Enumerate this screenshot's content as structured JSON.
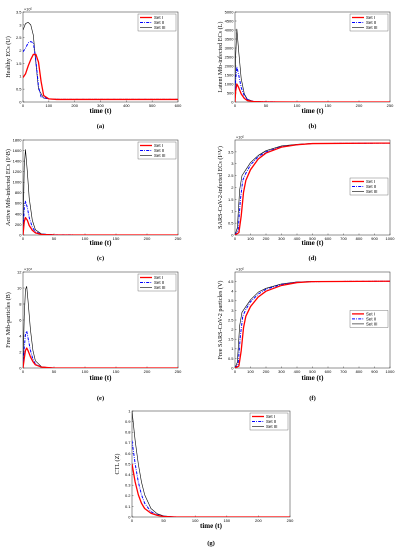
{
  "figure": {
    "legend_entries": [
      "Set I",
      "Set II",
      "Set III"
    ],
    "series_styles": [
      {
        "name": "Set I",
        "color": "#ff0000",
        "dash": "solid"
      },
      {
        "name": "Set II",
        "color": "#0000ff",
        "dash": "dashdot"
      },
      {
        "name": "Set III",
        "color": "#000000",
        "dash": "solid"
      }
    ]
  },
  "chart_data": [
    {
      "type": "line",
      "panel_label": "(a)",
      "ylabel": "Healthy ECs (U)",
      "xlabel": "time (t)",
      "xlim": [
        0,
        600
      ],
      "ylim": [
        0,
        3.5
      ],
      "y_multiplier": "×10⁵",
      "xticks": [
        0,
        100,
        200,
        300,
        400,
        500,
        600
      ],
      "xtick_labels": [
        "0",
        "100",
        "200",
        "300",
        "400",
        "500",
        "600"
      ],
      "yticks": [
        0,
        0.5,
        1,
        1.5,
        2,
        2.5,
        3,
        3.5
      ],
      "ytick_labels": [
        "0",
        "0.5",
        "1",
        "1.5",
        "2",
        "2.5",
        "3",
        "3.5"
      ],
      "legend_position": "top-right",
      "series": [
        {
          "name": "Set I",
          "x": [
            0,
            10,
            20,
            30,
            40,
            50,
            60,
            70,
            80,
            100,
            130,
            200,
            300,
            400,
            500,
            600
          ],
          "y": [
            0.95,
            1.1,
            1.4,
            1.65,
            1.85,
            1.85,
            1.55,
            0.8,
            0.25,
            0.12,
            0.1,
            0.1,
            0.1,
            0.1,
            0.1,
            0.1
          ]
        },
        {
          "name": "Set II",
          "x": [
            0,
            10,
            20,
            30,
            40,
            50,
            60,
            70,
            100,
            150,
            200,
            300,
            400,
            500,
            600
          ],
          "y": [
            1.95,
            2.1,
            2.3,
            2.35,
            2.3,
            1.6,
            0.6,
            0.2,
            0.12,
            0.1,
            0.1,
            0.1,
            0.1,
            0.1,
            0.1
          ]
        },
        {
          "name": "Set III",
          "x": [
            0,
            10,
            20,
            30,
            40,
            50,
            60,
            80,
            100,
            150,
            200,
            300,
            400,
            500,
            600
          ],
          "y": [
            2.8,
            3.05,
            3.1,
            3.0,
            2.6,
            1.5,
            0.5,
            0.15,
            0.12,
            0.1,
            0.1,
            0.1,
            0.1,
            0.1,
            0.1
          ]
        }
      ]
    },
    {
      "type": "line",
      "panel_label": "(b)",
      "ylabel": "Latent Mtb-infected ECs (L)",
      "xlabel": "time (t)",
      "xlim": [
        0,
        250
      ],
      "ylim": [
        0,
        5000
      ],
      "xticks": [
        0,
        50,
        100,
        150,
        200,
        250
      ],
      "xtick_labels": [
        "0",
        "50",
        "100",
        "150",
        "200",
        "250"
      ],
      "yticks": [
        0,
        500,
        1000,
        1500,
        2000,
        2500,
        3000,
        3500,
        4000,
        4500,
        5000
      ],
      "ytick_labels": [
        "0",
        "500",
        "1000",
        "1500",
        "2000",
        "2500",
        "3000",
        "3500",
        "4000",
        "4500",
        "5000"
      ],
      "legend_position": "top-right",
      "series": [
        {
          "name": "Set I",
          "x": [
            0,
            1,
            3,
            6,
            10,
            15,
            20,
            30,
            50,
            100,
            250
          ],
          "y": [
            0,
            600,
            1000,
            800,
            450,
            200,
            80,
            20,
            5,
            0,
            0
          ]
        },
        {
          "name": "Set II",
          "x": [
            0,
            1,
            3,
            6,
            10,
            15,
            20,
            30,
            50,
            100,
            250
          ],
          "y": [
            0,
            1200,
            1950,
            1500,
            800,
            350,
            130,
            30,
            5,
            0,
            0
          ]
        },
        {
          "name": "Set III",
          "x": [
            0,
            1,
            3,
            6,
            10,
            15,
            20,
            30,
            50,
            100,
            250
          ],
          "y": [
            0,
            2500,
            4050,
            2800,
            1300,
            450,
            150,
            30,
            5,
            0,
            0
          ]
        }
      ]
    },
    {
      "type": "line",
      "panel_label": "(c)",
      "ylabel": "Active Mtb-infected ECs (I^B)",
      "xlabel": "time (t)",
      "xlim": [
        0,
        250
      ],
      "ylim": [
        0,
        1800
      ],
      "xticks": [
        0,
        50,
        100,
        150,
        200,
        250
      ],
      "xtick_labels": [
        "0",
        "50",
        "100",
        "150",
        "200",
        "250"
      ],
      "yticks": [
        0,
        200,
        400,
        600,
        800,
        1000,
        1200,
        1400,
        1600,
        1800
      ],
      "ytick_labels": [
        "0",
        "200",
        "400",
        "600",
        "800",
        "1000",
        "1200",
        "1400",
        "1600",
        "1800"
      ],
      "legend_position": "top-right",
      "series": [
        {
          "name": "Set I",
          "x": [
            0,
            2,
            4,
            7,
            10,
            15,
            20,
            30,
            50,
            100,
            250
          ],
          "y": [
            0,
            250,
            330,
            280,
            180,
            90,
            40,
            10,
            2,
            0,
            0
          ]
        },
        {
          "name": "Set II",
          "x": [
            0,
            2,
            4,
            7,
            10,
            15,
            20,
            30,
            50,
            100,
            250
          ],
          "y": [
            0,
            500,
            640,
            520,
            330,
            150,
            60,
            15,
            3,
            0,
            0
          ]
        },
        {
          "name": "Set III",
          "x": [
            0,
            2,
            4,
            7,
            10,
            15,
            20,
            30,
            50,
            100,
            250
          ],
          "y": [
            0,
            1300,
            1620,
            1200,
            700,
            280,
            100,
            20,
            3,
            0,
            0
          ]
        }
      ]
    },
    {
      "type": "line",
      "panel_label": "(d)",
      "ylabel": "SARS-CoV-2-infected ECs (I^V)",
      "xlabel": "time (t)",
      "xlim": [
        0,
        1000
      ],
      "ylim": [
        0,
        4
      ],
      "y_multiplier": "×10⁵",
      "xticks": [
        0,
        100,
        200,
        300,
        400,
        500,
        600,
        700,
        800,
        900,
        1000
      ],
      "xtick_labels": [
        "0",
        "100",
        "200",
        "300",
        "400",
        "500",
        "600",
        "700",
        "800",
        "900",
        "1000"
      ],
      "yticks": [
        0,
        0.5,
        1,
        1.5,
        2,
        2.5,
        3,
        3.5
      ],
      "ytick_labels": [
        "0",
        "0.5",
        "1",
        "1.5",
        "2",
        "2.5",
        "3",
        "3.5"
      ],
      "legend_position": "center-right",
      "series": [
        {
          "name": "Set I",
          "x": [
            0,
            25,
            40,
            55,
            70,
            100,
            150,
            200,
            300,
            400,
            500,
            1000
          ],
          "y": [
            0,
            0.1,
            0.8,
            1.8,
            2.3,
            2.75,
            3.2,
            3.45,
            3.7,
            3.8,
            3.85,
            3.87
          ]
        },
        {
          "name": "Set II",
          "x": [
            0,
            20,
            35,
            50,
            70,
            100,
            150,
            200,
            300,
            400,
            500,
            1000
          ],
          "y": [
            0,
            0.2,
            1.5,
            2.3,
            2.6,
            2.95,
            3.3,
            3.5,
            3.72,
            3.8,
            3.85,
            3.87
          ]
        },
        {
          "name": "Set III",
          "x": [
            0,
            15,
            30,
            45,
            70,
            100,
            150,
            200,
            300,
            400,
            500,
            1000
          ],
          "y": [
            0,
            0.3,
            1.9,
            2.5,
            2.75,
            3.05,
            3.35,
            3.55,
            3.75,
            3.82,
            3.86,
            3.87
          ]
        }
      ]
    },
    {
      "type": "line",
      "panel_label": "(e)",
      "ylabel": "Free Mtb-particles (B)",
      "xlabel": "time (t)",
      "xlim": [
        0,
        250
      ],
      "ylim": [
        0,
        12
      ],
      "y_multiplier": "×10⁴",
      "xticks": [
        0,
        50,
        100,
        150,
        200,
        250
      ],
      "xtick_labels": [
        "0",
        "50",
        "100",
        "150",
        "200",
        "250"
      ],
      "yticks": [
        0,
        2,
        4,
        6,
        8,
        10,
        12
      ],
      "ytick_labels": [
        "0",
        "2",
        "4",
        "6",
        "8",
        "10",
        "12"
      ],
      "legend_position": "top-right",
      "series": [
        {
          "name": "Set I",
          "x": [
            0,
            2,
            4,
            6,
            8,
            12,
            16,
            20,
            30,
            50,
            100,
            250
          ],
          "y": [
            0,
            1.2,
            2.2,
            2.5,
            2.2,
            1.4,
            0.8,
            0.4,
            0.1,
            0,
            0,
            0
          ]
        },
        {
          "name": "Set II",
          "x": [
            0,
            2,
            4,
            6,
            8,
            12,
            16,
            20,
            30,
            50,
            100,
            250
          ],
          "y": [
            0,
            2.5,
            4.2,
            4.6,
            3.8,
            2.2,
            1.1,
            0.5,
            0.1,
            0,
            0,
            0
          ]
        },
        {
          "name": "Set III",
          "x": [
            0,
            2,
            4,
            6,
            8,
            12,
            16,
            20,
            30,
            50,
            100,
            250
          ],
          "y": [
            0,
            6.5,
            9.8,
            10.2,
            8.5,
            4.8,
            2.2,
            0.9,
            0.15,
            0,
            0,
            0
          ]
        }
      ]
    },
    {
      "type": "line",
      "panel_label": "(f)",
      "ylabel": "Free SARS-CoV-2 particles (V)",
      "xlabel": "time (t)",
      "xlim": [
        0,
        1000
      ],
      "ylim": [
        0,
        5
      ],
      "y_multiplier": "×10⁵",
      "xticks": [
        0,
        100,
        200,
        300,
        400,
        500,
        600,
        700,
        800,
        900,
        1000
      ],
      "xtick_labels": [
        "0",
        "100",
        "200",
        "300",
        "400",
        "500",
        "600",
        "700",
        "800",
        "900",
        "1000"
      ],
      "yticks": [
        0,
        0.5,
        1,
        1.5,
        2,
        2.5,
        3,
        3.5,
        4,
        4.5
      ],
      "ytick_labels": [
        "0",
        "0.5",
        "1",
        "1.5",
        "2",
        "2.5",
        "3",
        "3.5",
        "4",
        "4.5"
      ],
      "legend_position": "center-right",
      "series": [
        {
          "name": "Set I",
          "x": [
            0,
            25,
            40,
            55,
            70,
            100,
            150,
            200,
            300,
            400,
            500,
            1000
          ],
          "y": [
            0,
            0.1,
            0.9,
            2.1,
            2.7,
            3.2,
            3.7,
            4.0,
            4.3,
            4.45,
            4.5,
            4.52
          ]
        },
        {
          "name": "Set II",
          "x": [
            0,
            20,
            35,
            50,
            70,
            100,
            150,
            200,
            300,
            400,
            500,
            1000
          ],
          "y": [
            0,
            0.2,
            1.7,
            2.7,
            3.05,
            3.45,
            3.85,
            4.1,
            4.35,
            4.47,
            4.5,
            4.52
          ]
        },
        {
          "name": "Set III",
          "x": [
            0,
            15,
            30,
            45,
            70,
            100,
            150,
            200,
            300,
            400,
            500,
            1000
          ],
          "y": [
            0,
            0.3,
            2.2,
            2.9,
            3.2,
            3.55,
            3.95,
            4.15,
            4.38,
            4.48,
            4.51,
            4.52
          ]
        }
      ]
    },
    {
      "type": "line",
      "panel_label": "(g)",
      "ylabel": "CTL (Z)",
      "xlabel": "time (t)",
      "xlim": [
        0,
        250
      ],
      "ylim": [
        0,
        1
      ],
      "xticks": [
        0,
        50,
        100,
        150,
        200,
        250
      ],
      "xtick_labels": [
        "0",
        "50",
        "100",
        "150",
        "200",
        "250"
      ],
      "yticks": [
        0,
        0.1,
        0.2,
        0.3,
        0.4,
        0.5,
        0.6,
        0.7,
        0.8,
        0.9,
        1
      ],
      "ytick_labels": [
        "0",
        "0.1",
        "0.2",
        "0.3",
        "0.4",
        "0.5",
        "0.6",
        "0.7",
        "0.8",
        "0.9",
        "1"
      ],
      "legend_position": "top-right",
      "series": [
        {
          "name": "Set I",
          "x": [
            0,
            5,
            10,
            15,
            20,
            30,
            40,
            50,
            70,
            100,
            250
          ],
          "y": [
            0.5,
            0.33,
            0.21,
            0.13,
            0.08,
            0.035,
            0.015,
            0.005,
            0,
            0,
            0
          ]
        },
        {
          "name": "Set II",
          "x": [
            0,
            5,
            10,
            15,
            20,
            30,
            40,
            50,
            70,
            100,
            250
          ],
          "y": [
            0.72,
            0.5,
            0.33,
            0.21,
            0.13,
            0.05,
            0.02,
            0.007,
            0,
            0,
            0
          ]
        },
        {
          "name": "Set III",
          "x": [
            0,
            5,
            10,
            15,
            20,
            30,
            40,
            50,
            70,
            100,
            250
          ],
          "y": [
            1.0,
            0.72,
            0.5,
            0.33,
            0.21,
            0.08,
            0.03,
            0.01,
            0,
            0,
            0
          ]
        }
      ]
    }
  ]
}
